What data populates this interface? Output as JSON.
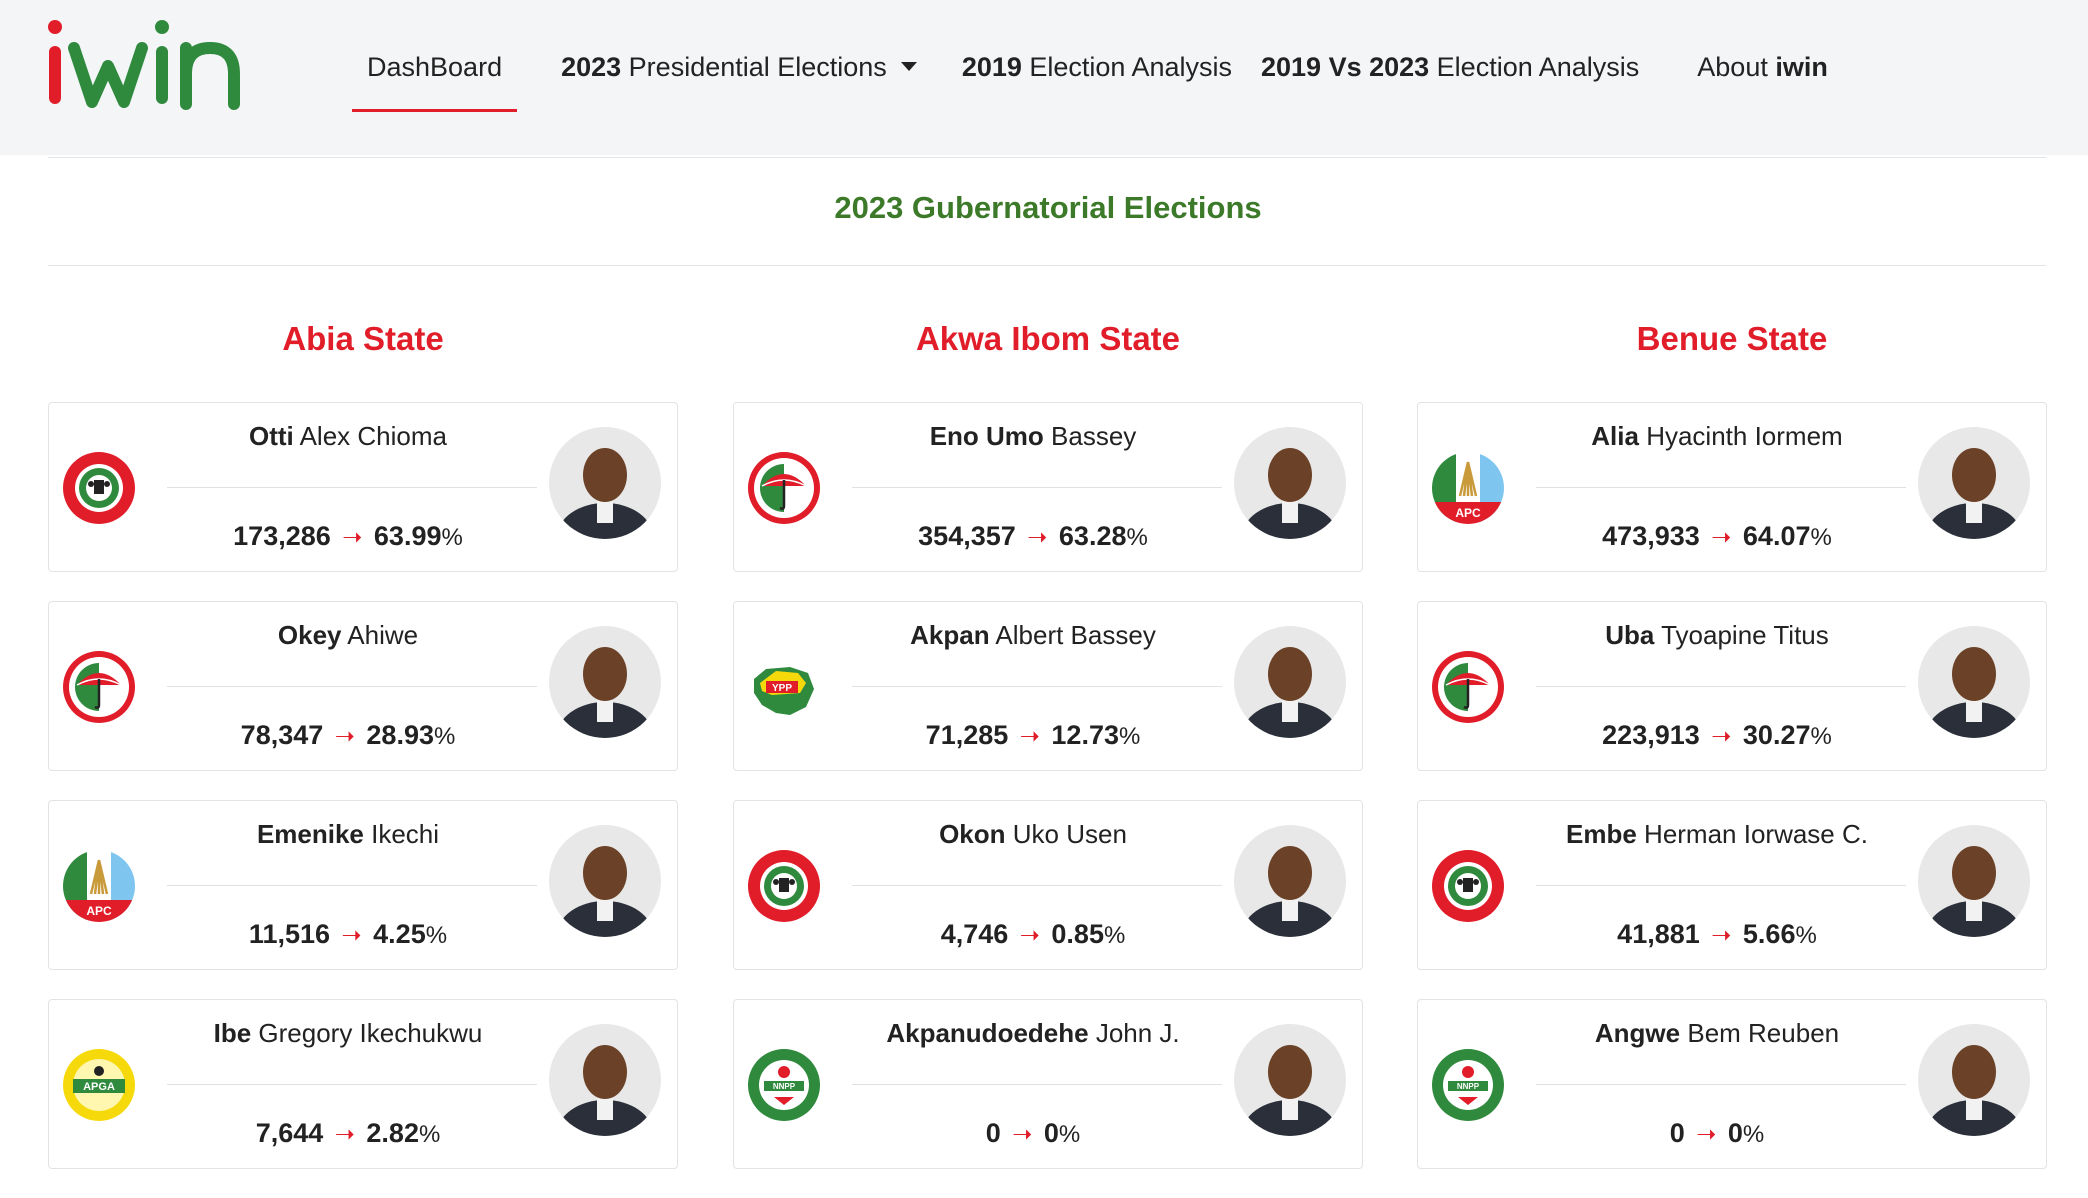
{
  "brand": {
    "logo_text": "iwin"
  },
  "nav": {
    "dashboard": "DashBoard",
    "presidential_year": "2023",
    "presidential_rest": " Presidential Elections",
    "analysis2019_year": "2019",
    "analysis2019_rest": " Election Analysis",
    "versus_bold": "2019 Vs 2023",
    "versus_rest": " Election Analysis",
    "about_prefix": "About ",
    "about_bold": "iwin"
  },
  "page": {
    "title": "2023 Gubernatorial Elections"
  },
  "colors": {
    "accent_red": "#e11d2a",
    "title_green": "#3c7a2a"
  },
  "states": [
    {
      "name": "Abia State",
      "candidates": [
        {
          "surname": "Otti",
          "given": " Alex Chioma",
          "votes": "173,286",
          "percent": "63.99",
          "party": "LP"
        },
        {
          "surname": "Okey",
          "given": " Ahiwe",
          "votes": "78,347",
          "percent": "28.93",
          "party": "PDP"
        },
        {
          "surname": "Emenike",
          "given": " Ikechi",
          "votes": "11,516",
          "percent": "4.25",
          "party": "APC"
        },
        {
          "surname": "Ibe",
          "given": " Gregory Ikechukwu",
          "votes": "7,644",
          "percent": "2.82",
          "party": "APGA"
        }
      ]
    },
    {
      "name": "Akwa Ibom State",
      "candidates": [
        {
          "surname": "Eno Umo",
          "given": " Bassey",
          "votes": "354,357",
          "percent": "63.28",
          "party": "PDP"
        },
        {
          "surname": "Akpan",
          "given": " Albert Bassey",
          "votes": "71,285",
          "percent": "12.73",
          "party": "YPP"
        },
        {
          "surname": "Okon",
          "given": " Uko Usen",
          "votes": "4,746",
          "percent": "0.85",
          "party": "LP"
        },
        {
          "surname": "Akpanudoedehe",
          "given": " John J.",
          "votes": "0",
          "percent": "0",
          "party": "NNPP"
        }
      ]
    },
    {
      "name": "Benue State",
      "candidates": [
        {
          "surname": "Alia",
          "given": " Hyacinth Iormem",
          "votes": "473,933",
          "percent": "64.07",
          "party": "APC"
        },
        {
          "surname": "Uba",
          "given": " Tyoapine Titus",
          "votes": "223,913",
          "percent": "30.27",
          "party": "PDP"
        },
        {
          "surname": "Embe",
          "given": " Herman Iorwase C.",
          "votes": "41,881",
          "percent": "5.66",
          "party": "LP"
        },
        {
          "surname": "Angwe",
          "given": " Bem Reuben",
          "votes": "0",
          "percent": "0",
          "party": "NNPP"
        }
      ]
    }
  ],
  "symbols": {
    "arrow": "➝",
    "percent_sign": "%"
  }
}
